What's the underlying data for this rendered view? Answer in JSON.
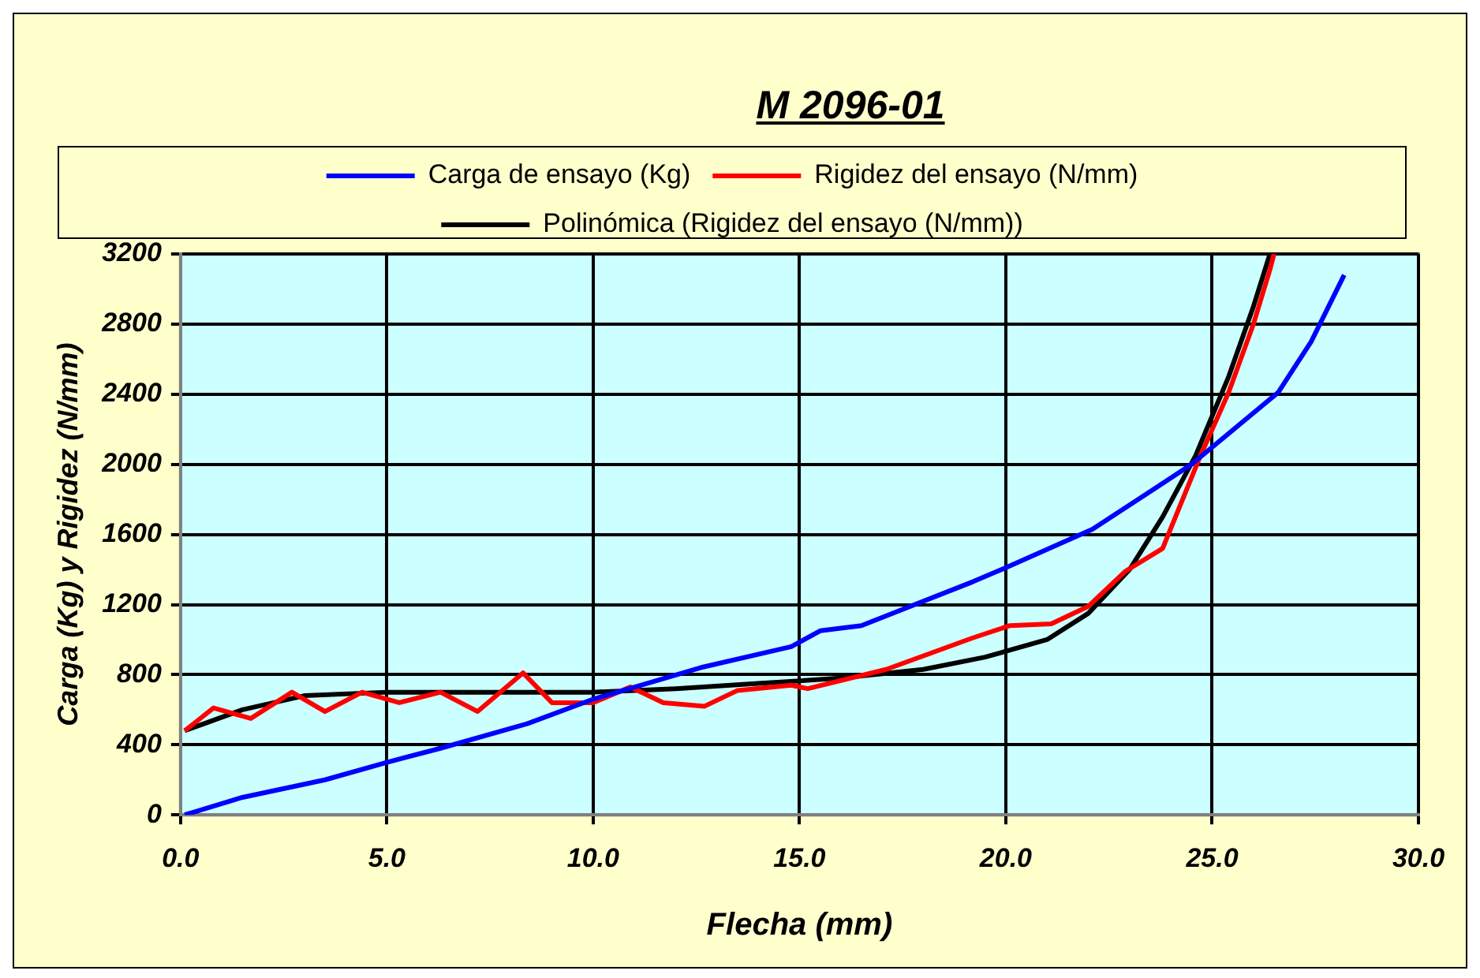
{
  "chart_data": {
    "type": "line",
    "title": "M 2096-01",
    "xlabel": "Flecha (mm)",
    "ylabel": "Carga (Kg) y Rigidez (N/mm)",
    "xlim": [
      0,
      30
    ],
    "xticks": [
      {
        "value": 0,
        "label": "0.0"
      },
      {
        "value": 5,
        "label": "5.0"
      },
      {
        "value": 10,
        "label": "10.0"
      },
      {
        "value": 15,
        "label": "15.0"
      },
      {
        "value": 20,
        "label": "20.0"
      },
      {
        "value": 25,
        "label": "25.0"
      },
      {
        "value": 30,
        "label": "30.0"
      }
    ],
    "ylim": [
      0,
      3200
    ],
    "yticks": [
      0,
      400,
      800,
      1200,
      1600,
      2000,
      2400,
      2800,
      3200
    ],
    "grid": true,
    "legend": "top",
    "marker": "none",
    "line_style": "solid",
    "series": [
      {
        "name": "Carga de ensayo (Kg)",
        "color": "#0000ff",
        "x": [
          0.1,
          1.5,
          3.5,
          5.0,
          6.3,
          8.4,
          10.0,
          12.6,
          14.8,
          15.5,
          16.5,
          19.2,
          20.0,
          22.1,
          23.6,
          24.5,
          26.6,
          27.4,
          28.2
        ],
        "values": [
          0,
          100,
          200,
          300,
          380,
          520,
          660,
          840,
          960,
          1050,
          1080,
          1330,
          1410,
          1630,
          1860,
          2000,
          2410,
          2700,
          3080
        ]
      },
      {
        "name": "Rigidez del ensayo (N/mm)",
        "color": "#ff0000",
        "x": [
          0.1,
          0.8,
          1.7,
          2.7,
          3.5,
          4.4,
          5.3,
          6.3,
          7.2,
          8.3,
          9.0,
          10.0,
          10.9,
          11.7,
          12.7,
          13.5,
          14.8,
          15.2,
          17.1,
          19.2,
          20.1,
          21.1,
          22.0,
          22.9,
          23.8,
          24.7,
          25.4,
          26.0,
          26.4,
          26.5
        ],
        "values": [
          480,
          610,
          550,
          700,
          590,
          700,
          640,
          700,
          590,
          810,
          640,
          640,
          730,
          640,
          620,
          710,
          740,
          720,
          830,
          1010,
          1080,
          1090,
          1190,
          1390,
          1520,
          2040,
          2410,
          2800,
          3110,
          3200
        ]
      },
      {
        "name": "Polinómica (Rigidez del ensayo (N/mm))",
        "color": "#000000",
        "x": [
          0.1,
          1.5,
          3.0,
          5.0,
          10.0,
          12.0,
          14.0,
          16.0,
          18.0,
          19.5,
          21.0,
          22.0,
          23.0,
          23.8,
          24.6,
          25.4,
          26.0,
          26.4
        ],
        "values": [
          480,
          600,
          680,
          700,
          700,
          720,
          750,
          780,
          830,
          900,
          1000,
          1150,
          1400,
          1700,
          2050,
          2500,
          2900,
          3200
        ]
      }
    ]
  }
}
